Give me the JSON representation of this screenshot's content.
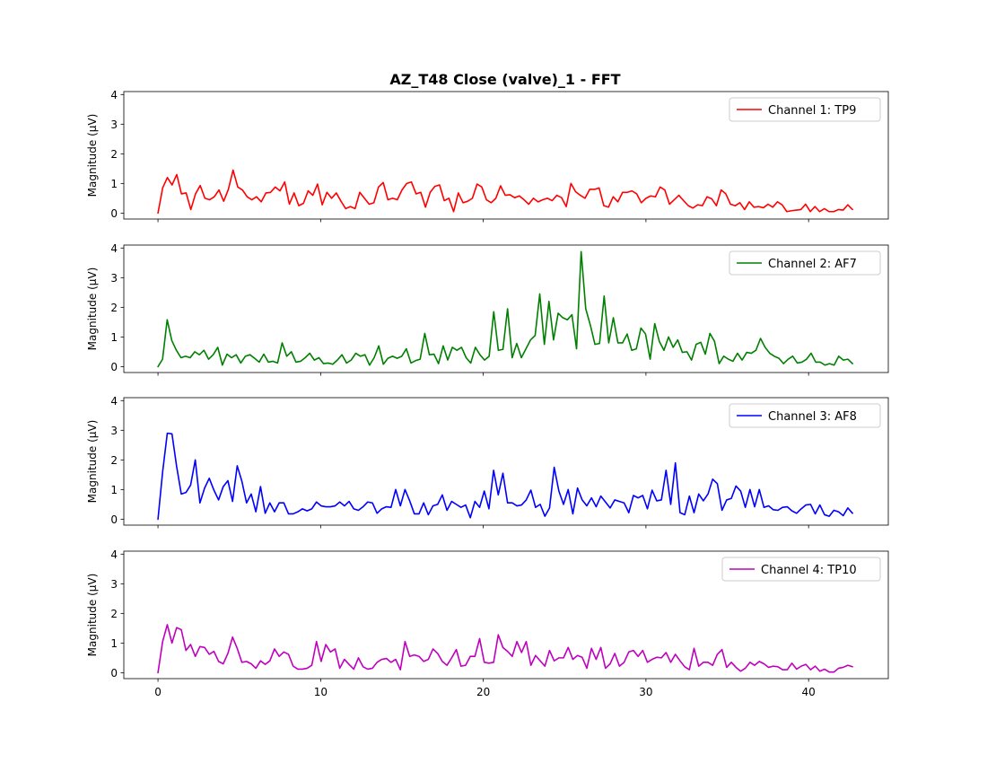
{
  "chart_data": {
    "type": "line",
    "title": "AZ_T48 Close (valve)_1 - FFT",
    "xlabel": "",
    "ylabel": "Magnitude ($\\mu$V)",
    "x_range": [
      0,
      42.7
    ],
    "xlim": [
      -2.1,
      44.9
    ],
    "ylim": [
      -0.2,
      4.1
    ],
    "x_ticks": [
      0,
      10,
      20,
      30,
      40
    ],
    "y_ticks": [
      0,
      1,
      2,
      3,
      4
    ],
    "grid": false,
    "legend_position": "upper right",
    "series": [
      {
        "name": "Channel 1: TP9",
        "color": "#ff0000",
        "values": [
          0.0,
          0.85,
          1.2,
          0.95,
          1.3,
          0.65,
          0.68,
          0.12,
          0.65,
          0.93,
          0.5,
          0.45,
          0.55,
          0.78,
          0.4,
          0.8,
          1.45,
          0.88,
          0.78,
          0.55,
          0.45,
          0.55,
          0.38,
          0.68,
          0.7,
          0.88,
          0.75,
          1.05,
          0.3,
          0.68,
          0.25,
          0.33,
          0.75,
          0.6,
          0.98,
          0.28,
          0.7,
          0.5,
          0.68,
          0.4,
          0.15,
          0.22,
          0.15,
          0.7,
          0.5,
          0.3,
          0.35,
          0.88,
          1.03,
          0.45,
          0.5,
          0.45,
          0.78,
          1.0,
          1.05,
          0.65,
          0.7,
          0.2,
          0.7,
          0.9,
          0.95,
          0.42,
          0.5,
          0.05,
          0.68,
          0.35,
          0.4,
          0.5,
          0.98,
          0.88,
          0.45,
          0.35,
          0.5,
          0.92,
          0.6,
          0.62,
          0.52,
          0.58,
          0.45,
          0.3,
          0.5,
          0.38,
          0.45,
          0.5,
          0.42,
          0.6,
          0.52,
          0.22,
          1.0,
          0.72,
          0.6,
          0.5,
          0.8,
          0.8,
          0.85,
          0.25,
          0.2,
          0.55,
          0.38,
          0.7,
          0.7,
          0.75,
          0.65,
          0.35,
          0.5,
          0.58,
          0.55,
          0.88,
          0.78,
          0.3,
          0.45,
          0.6,
          0.42,
          0.25,
          0.17,
          0.28,
          0.25,
          0.55,
          0.48,
          0.25,
          0.78,
          0.65,
          0.3,
          0.25,
          0.35,
          0.12,
          0.38,
          0.2,
          0.22,
          0.18,
          0.3,
          0.2,
          0.38,
          0.28,
          0.05,
          0.08,
          0.1,
          0.12,
          0.3,
          0.05,
          0.22,
          0.05,
          0.15,
          0.05,
          0.05,
          0.12,
          0.1,
          0.28,
          0.12
        ]
      },
      {
        "name": "Channel 2: AF7",
        "color": "#008000",
        "values": [
          0.0,
          0.25,
          1.58,
          0.88,
          0.55,
          0.3,
          0.35,
          0.3,
          0.5,
          0.4,
          0.55,
          0.25,
          0.4,
          0.65,
          0.05,
          0.42,
          0.3,
          0.4,
          0.12,
          0.35,
          0.4,
          0.28,
          0.15,
          0.42,
          0.15,
          0.18,
          0.12,
          0.8,
          0.35,
          0.5,
          0.15,
          0.18,
          0.3,
          0.45,
          0.22,
          0.3,
          0.1,
          0.12,
          0.08,
          0.22,
          0.4,
          0.12,
          0.22,
          0.45,
          0.35,
          0.4,
          0.05,
          0.3,
          0.7,
          0.08,
          0.28,
          0.35,
          0.28,
          0.35,
          0.6,
          0.12,
          0.2,
          0.25,
          1.12,
          0.4,
          0.42,
          0.1,
          0.7,
          0.22,
          0.65,
          0.55,
          0.65,
          0.3,
          0.12,
          0.65,
          0.4,
          0.22,
          0.35,
          1.85,
          0.55,
          0.58,
          1.95,
          0.3,
          0.78,
          0.3,
          0.6,
          0.9,
          1.05,
          2.45,
          0.75,
          2.2,
          0.9,
          1.8,
          1.65,
          1.58,
          1.75,
          0.6,
          3.88,
          1.95,
          1.4,
          0.75,
          0.78,
          2.38,
          0.8,
          1.65,
          0.8,
          0.8,
          1.1,
          0.55,
          0.6,
          1.3,
          1.1,
          0.25,
          1.45,
          0.85,
          0.55,
          1.0,
          0.65,
          0.9,
          0.48,
          0.5,
          0.22,
          0.75,
          0.82,
          0.42,
          1.12,
          0.85,
          0.1,
          0.35,
          0.25,
          0.18,
          0.45,
          0.22,
          0.48,
          0.45,
          0.55,
          0.95,
          0.65,
          0.45,
          0.35,
          0.28,
          0.1,
          0.25,
          0.35,
          0.12,
          0.15,
          0.25,
          0.45,
          0.15,
          0.15,
          0.05,
          0.1,
          0.05,
          0.35,
          0.22,
          0.25,
          0.1
        ]
      },
      {
        "name": "Channel 3: AF8",
        "color": "#0000ff",
        "values": [
          0.0,
          1.6,
          2.9,
          2.88,
          1.78,
          0.85,
          0.9,
          1.15,
          2.0,
          0.55,
          1.05,
          1.38,
          0.98,
          0.65,
          1.1,
          1.3,
          0.6,
          1.8,
          1.28,
          0.55,
          0.85,
          0.25,
          1.1,
          0.2,
          0.55,
          0.25,
          0.55,
          0.55,
          0.18,
          0.18,
          0.25,
          0.35,
          0.28,
          0.35,
          0.58,
          0.45,
          0.42,
          0.42,
          0.45,
          0.58,
          0.45,
          0.6,
          0.35,
          0.3,
          0.42,
          0.58,
          0.55,
          0.2,
          0.35,
          0.42,
          0.4,
          1.0,
          0.45,
          1.0,
          0.62,
          0.18,
          0.18,
          0.55,
          0.15,
          0.45,
          0.5,
          0.82,
          0.3,
          0.6,
          0.5,
          0.4,
          0.48,
          0.05,
          0.6,
          0.4,
          0.95,
          0.35,
          1.65,
          0.82,
          1.55,
          0.55,
          0.55,
          0.45,
          0.48,
          0.65,
          0.98,
          0.4,
          0.5,
          0.1,
          0.38,
          1.75,
          0.95,
          0.5,
          1.0,
          0.18,
          1.05,
          0.65,
          0.45,
          0.72,
          0.42,
          0.78,
          0.58,
          0.38,
          0.65,
          0.6,
          0.55,
          0.22,
          0.8,
          0.72,
          0.8,
          0.35,
          0.98,
          0.62,
          0.65,
          1.65,
          0.5,
          1.9,
          0.22,
          0.15,
          0.78,
          0.22,
          0.85,
          0.62,
          0.85,
          1.35,
          1.2,
          0.3,
          0.65,
          0.7,
          1.12,
          0.95,
          0.4,
          1.0,
          0.42,
          1.0,
          0.4,
          0.45,
          0.32,
          0.3,
          0.4,
          0.42,
          0.28,
          0.2,
          0.35,
          0.48,
          0.5,
          0.18,
          0.48,
          0.15,
          0.1,
          0.3,
          0.25,
          0.12,
          0.38,
          0.2
        ]
      },
      {
        "name": "Channel 4: TP10",
        "color": "#bf00bf",
        "values": [
          0.0,
          1.05,
          1.62,
          1.0,
          1.52,
          1.45,
          0.75,
          0.95,
          0.55,
          0.88,
          0.85,
          0.62,
          0.72,
          0.38,
          0.3,
          0.65,
          1.2,
          0.82,
          0.35,
          0.38,
          0.3,
          0.15,
          0.4,
          0.28,
          0.4,
          0.8,
          0.55,
          0.7,
          0.62,
          0.22,
          0.12,
          0.12,
          0.15,
          0.25,
          1.05,
          0.38,
          0.95,
          0.7,
          0.8,
          0.15,
          0.45,
          0.28,
          0.12,
          0.5,
          0.2,
          0.12,
          0.15,
          0.35,
          0.45,
          0.48,
          0.35,
          0.45,
          0.1,
          1.05,
          0.55,
          0.6,
          0.55,
          0.38,
          0.45,
          0.8,
          0.65,
          0.38,
          0.25,
          0.5,
          0.78,
          0.22,
          0.25,
          0.55,
          0.55,
          1.15,
          0.35,
          0.32,
          0.35,
          1.28,
          0.85,
          0.72,
          0.55,
          1.05,
          0.68,
          1.05,
          0.25,
          0.58,
          0.4,
          0.22,
          0.75,
          0.4,
          0.5,
          0.5,
          0.85,
          0.45,
          0.58,
          0.52,
          0.15,
          0.82,
          0.45,
          0.85,
          0.15,
          0.3,
          0.65,
          0.22,
          0.35,
          0.7,
          0.75,
          0.55,
          0.75,
          0.35,
          0.45,
          0.52,
          0.5,
          0.68,
          0.35,
          0.62,
          0.4,
          0.2,
          0.1,
          0.82,
          0.22,
          0.35,
          0.35,
          0.25,
          0.62,
          0.78,
          0.18,
          0.35,
          0.18,
          0.05,
          0.15,
          0.35,
          0.25,
          0.38,
          0.3,
          0.18,
          0.22,
          0.2,
          0.1,
          0.1,
          0.32,
          0.12,
          0.22,
          0.28,
          0.1,
          0.22,
          0.05,
          0.12,
          0.02,
          0.02,
          0.15,
          0.18,
          0.25,
          0.2
        ]
      }
    ]
  }
}
